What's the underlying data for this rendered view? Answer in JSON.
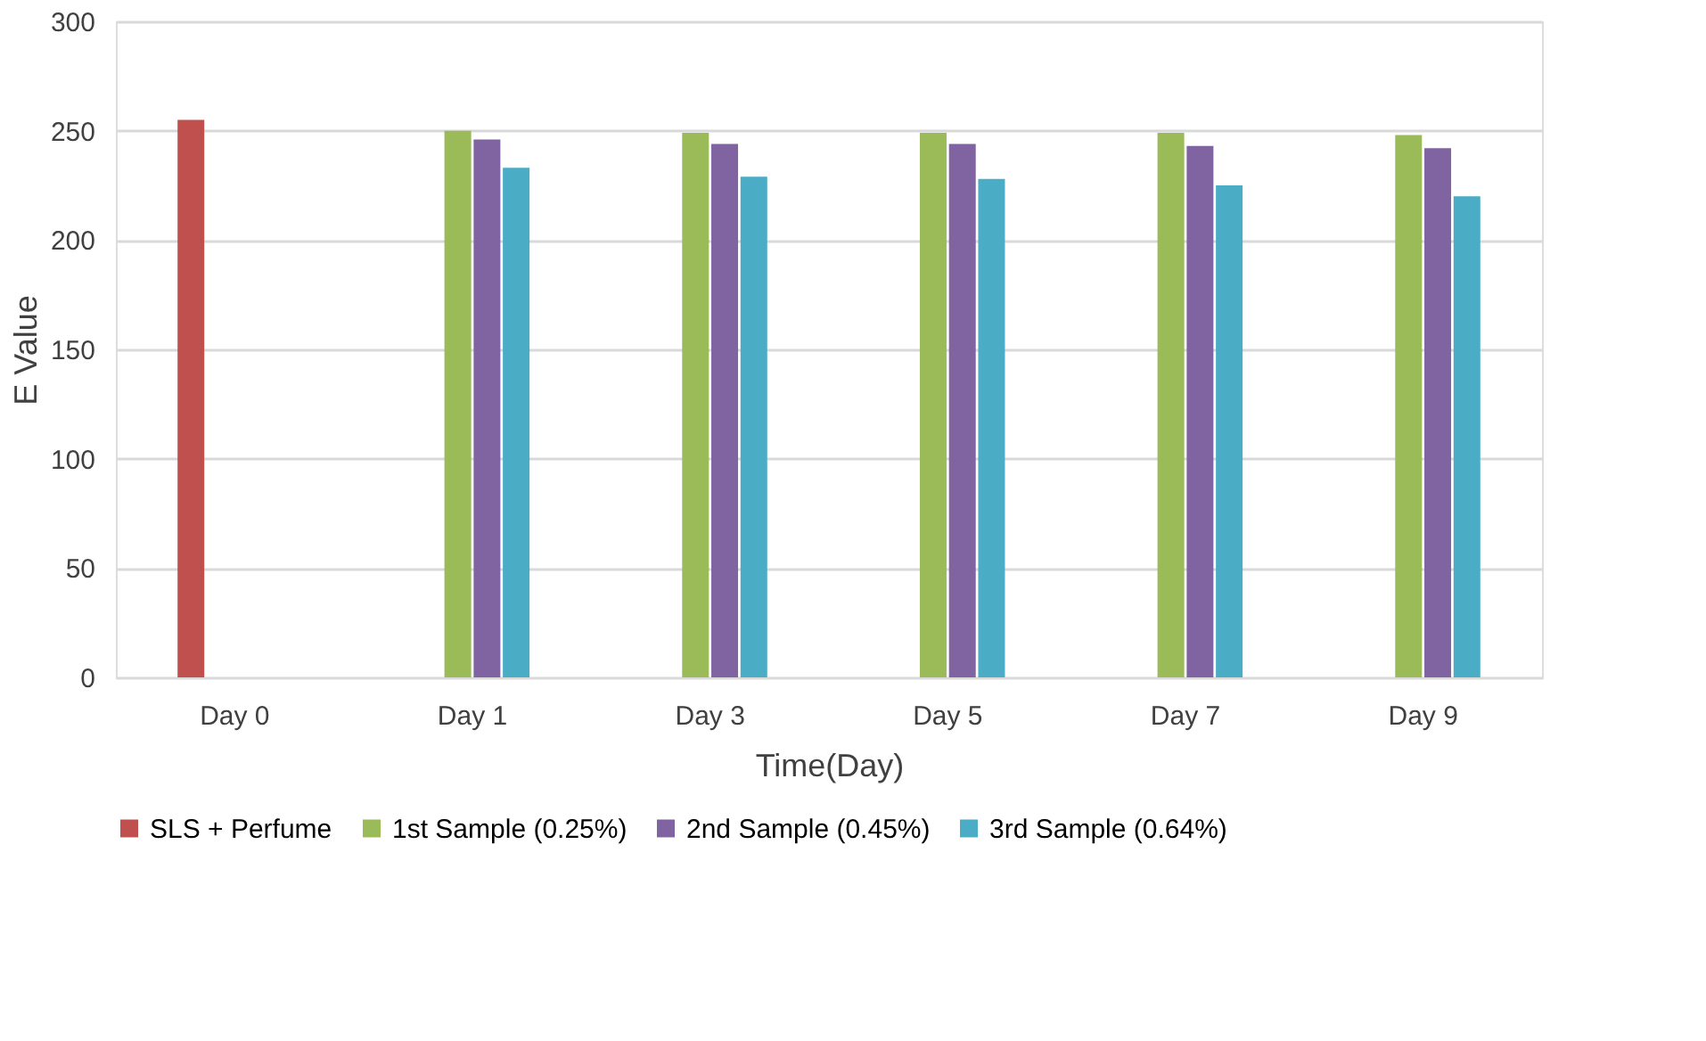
{
  "chart_data": {
    "type": "bar",
    "xlabel": "Time(Day)",
    "ylabel": "E Value",
    "categories": [
      "Day 0",
      "Day 1",
      "Day 3",
      "Day 5",
      "Day 7",
      "Day 9"
    ],
    "series": [
      {
        "name": "SLS + Perfume",
        "color": "#c0504d",
        "values": [
          255,
          null,
          null,
          null,
          null,
          null
        ]
      },
      {
        "name": "1st Sample (0.25%)",
        "color": "#9bbb59",
        "values": [
          null,
          250,
          249,
          249,
          249,
          248
        ]
      },
      {
        "name": "2nd Sample (0.45%)",
        "color": "#8064a2",
        "values": [
          null,
          246,
          244,
          244,
          243,
          242
        ]
      },
      {
        "name": "3rd Sample (0.64%)",
        "color": "#4bacc6",
        "values": [
          null,
          233,
          229,
          228,
          225,
          220
        ]
      }
    ],
    "ylim": [
      0,
      300
    ],
    "yticks": [
      0,
      50,
      100,
      150,
      200,
      250,
      300
    ],
    "grid": "y",
    "legend": "bottom"
  }
}
